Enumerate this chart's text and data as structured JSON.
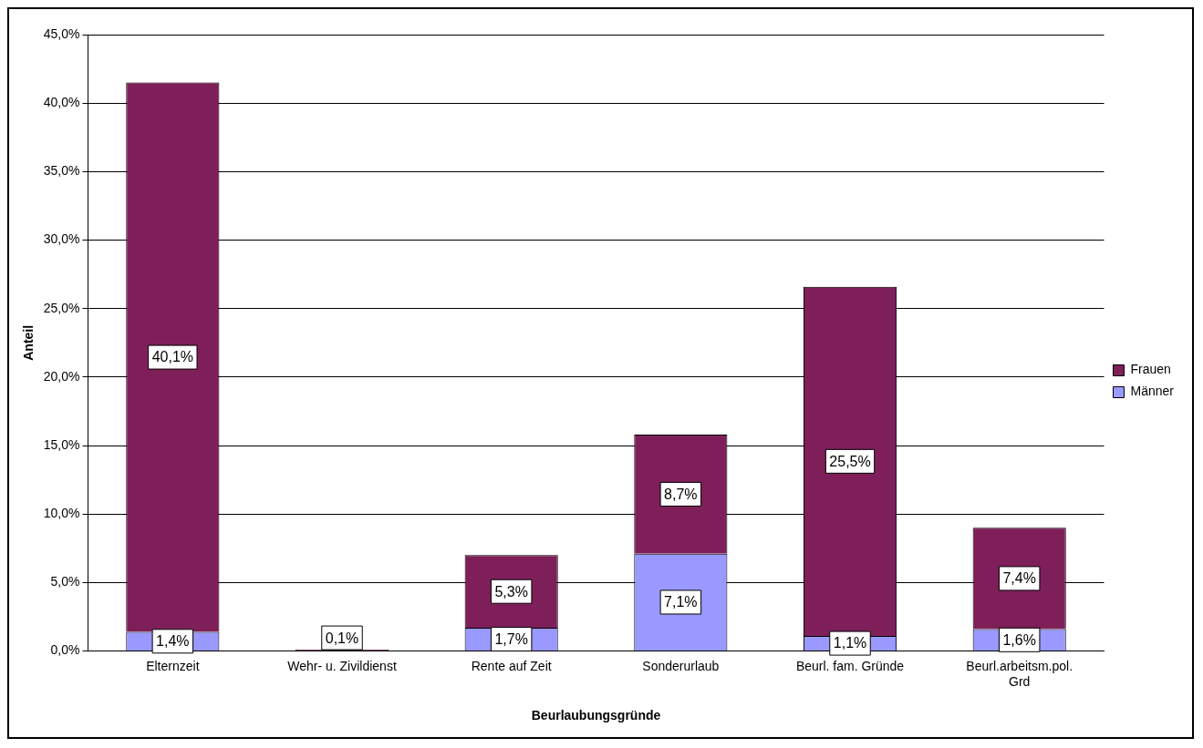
{
  "chart_data": {
    "type": "bar",
    "stacked": true,
    "xlabel": "Beurlaubungsgründe",
    "ylabel": "Anteil",
    "categories": [
      "Elternzeit",
      "Wehr- u. Zivildienst",
      "Rente auf Zeit",
      "Sonderurlaub",
      "Beurl. fam. Gründe",
      "Beurl.arbeitsm.pol. Grd"
    ],
    "series": [
      {
        "name": "Männer",
        "color": "#9999ff",
        "values": [
          1.4,
          0,
          1.7,
          7.1,
          1.1,
          1.6
        ],
        "value_labels": [
          "1,4%",
          null,
          "1,7%",
          "7,1%",
          "1,1%",
          "1,6%"
        ]
      },
      {
        "name": "Frauen",
        "color": "#7f1f5a",
        "values": [
          40.1,
          0.1,
          5.3,
          8.7,
          25.5,
          7.4
        ],
        "value_labels": [
          "40,1%",
          "0,1%",
          "5,3%",
          "8,7%",
          "25,5%",
          "7,4%"
        ]
      }
    ],
    "ylim": [
      0,
      45
    ],
    "yticks": [
      {
        "value": 0,
        "label": "0,0%"
      },
      {
        "value": 5,
        "label": "5,0%"
      },
      {
        "value": 10,
        "label": "10,0%"
      },
      {
        "value": 15,
        "label": "15,0%"
      },
      {
        "value": 20,
        "label": "20,0%"
      },
      {
        "value": 25,
        "label": "25,0%"
      },
      {
        "value": 30,
        "label": "30,0%"
      },
      {
        "value": 35,
        "label": "35,0%"
      },
      {
        "value": 40,
        "label": "40,0%"
      },
      {
        "value": 45,
        "label": "45,0%"
      }
    ],
    "grid": "y",
    "legend": "right"
  }
}
